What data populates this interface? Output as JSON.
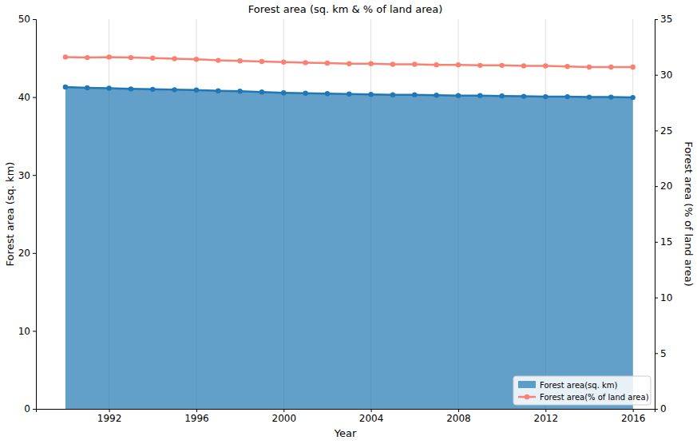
{
  "chart_data": {
    "type": "line",
    "title": "Forest area (sq. km & % of land area)",
    "x_label": "Year",
    "y_label": "Forest area (sq. km)",
    "y2_label": "Forest area (% of land area)",
    "x": [
      1990,
      1991,
      1992,
      1993,
      1994,
      1995,
      1996,
      1997,
      1998,
      1999,
      2000,
      2001,
      2002,
      2003,
      2004,
      2005,
      2006,
      2007,
      2008,
      2009,
      2010,
      2011,
      2012,
      2013,
      2014,
      2015,
      2016
    ],
    "series": [
      {
        "name": "Forest area(sq. km)",
        "type": "area",
        "color": "#1f77b4",
        "marker": "circle",
        "values": [
          41.3,
          41.2,
          41.15,
          41.05,
          41.0,
          40.95,
          40.9,
          40.8,
          40.75,
          40.65,
          40.55,
          40.5,
          40.45,
          40.4,
          40.35,
          40.3,
          40.3,
          40.25,
          40.2,
          40.2,
          40.15,
          40.1,
          40.05,
          40.05,
          40.0,
          40.0,
          39.95
        ]
      },
      {
        "name": "Forest area(% of land area)",
        "type": "line",
        "color": "#fa8072",
        "marker": "circle",
        "axis": "y2",
        "values": [
          31.6,
          31.55,
          31.6,
          31.55,
          31.5,
          31.45,
          31.4,
          31.3,
          31.25,
          31.2,
          31.15,
          31.1,
          31.05,
          31.0,
          31.0,
          30.95,
          30.95,
          30.9,
          30.9,
          30.85,
          30.85,
          30.8,
          30.8,
          30.75,
          30.7,
          30.7,
          30.7
        ]
      }
    ],
    "xlim": [
      1988.65,
      2017.0
    ],
    "xticks": [
      1992,
      1996,
      2000,
      2004,
      2008,
      2012,
      2016
    ],
    "ylim": [
      0,
      50
    ],
    "yticks": [
      0,
      10,
      20,
      30,
      40,
      50
    ],
    "y2lim": [
      0,
      35
    ],
    "y2ticks": [
      0,
      5,
      10,
      15,
      20,
      25,
      30,
      35
    ],
    "grid": "x",
    "legend": "lower right"
  }
}
